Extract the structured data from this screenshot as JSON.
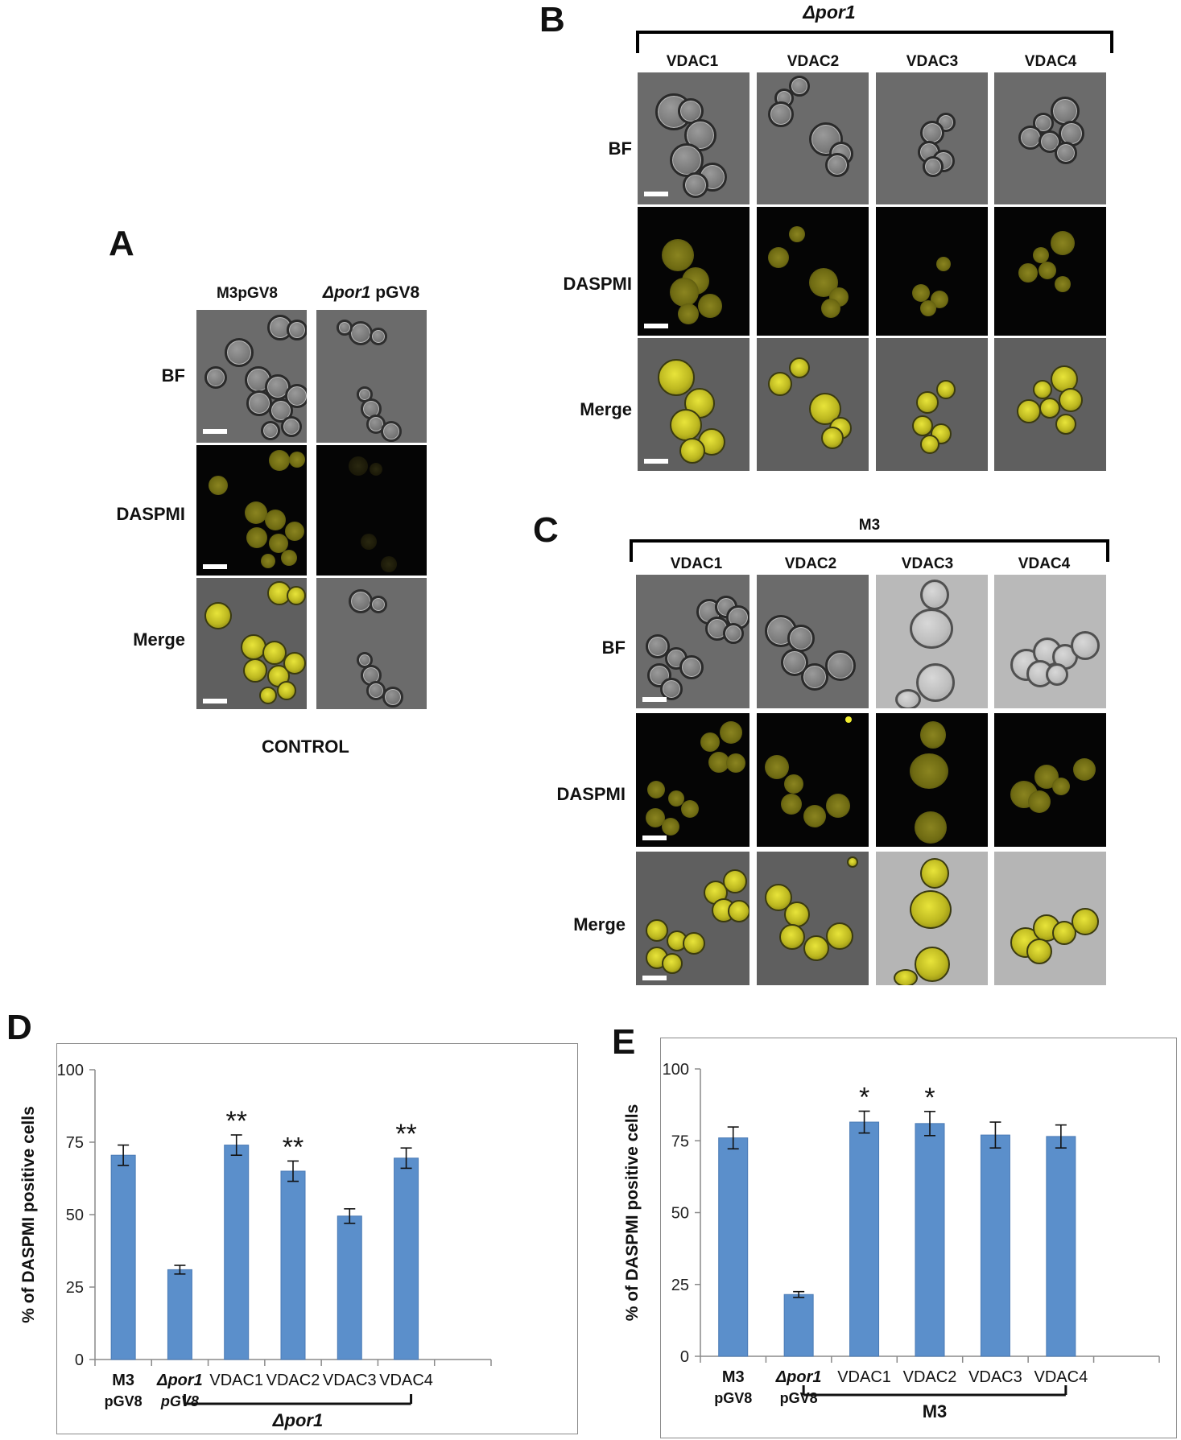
{
  "panels": {
    "A": {
      "letter": "A",
      "columns": [
        "M3pGV8",
        "pGV8"
      ],
      "col2_italic": "Δpor1",
      "rows": [
        "BF",
        "DASPMI",
        "Merge"
      ],
      "caption": "CONTROL"
    },
    "B": {
      "letter": "B",
      "header": "Δpor1",
      "columns": [
        "VDAC1",
        "VDAC2",
        "VDAC3",
        "VDAC4"
      ],
      "rows": [
        "BF",
        "DASPMI",
        "Merge"
      ]
    },
    "C": {
      "letter": "C",
      "header": "M3",
      "columns": [
        "VDAC1",
        "VDAC2",
        "VDAC3",
        "VDAC4"
      ],
      "rows": [
        "BF",
        "DASPMI",
        "Merge"
      ]
    },
    "D": {
      "letter": "D"
    },
    "E": {
      "letter": "E"
    }
  },
  "colors": {
    "bar": "#5b8fcb",
    "bar_stroke": "#4a7ab5",
    "axis": "#8a8a8a"
  },
  "chart_data": [
    {
      "id": "D",
      "type": "bar",
      "ylabel": "% of DASPMI positive cells",
      "ylim": [
        0,
        100
      ],
      "yticks": [
        0,
        25,
        50,
        75,
        100
      ],
      "categories": [
        {
          "line1": "M3",
          "line2": "pGV8",
          "style": "bold"
        },
        {
          "line1": "Δpor1",
          "line2": "pGV8",
          "style": "bolditalic"
        },
        {
          "line1": "VDAC1",
          "line2": "",
          "style": "normal"
        },
        {
          "line1": "VDAC2",
          "line2": "",
          "style": "normal"
        },
        {
          "line1": "VDAC3",
          "line2": "",
          "style": "normal"
        },
        {
          "line1": "VDAC4",
          "line2": "",
          "style": "normal"
        }
      ],
      "values": [
        70.5,
        31,
        74,
        65,
        49.5,
        69.5
      ],
      "errors": [
        3.5,
        1.5,
        3.5,
        3.5,
        2.5,
        3.5
      ],
      "significance": [
        "",
        "",
        "**",
        "**",
        "",
        "**"
      ],
      "group_label": "Δpor1",
      "group_span": [
        2,
        5
      ]
    },
    {
      "id": "E",
      "type": "bar",
      "ylabel": "% of DASPMI positive cells",
      "ylim": [
        0,
        100
      ],
      "yticks": [
        0,
        25,
        50,
        75,
        100
      ],
      "categories": [
        {
          "line1": "M3",
          "line2": "pGV8",
          "style": "bold"
        },
        {
          "line1": "Δpor1",
          "line2": "pGV8",
          "style": "bolditalic"
        },
        {
          "line1": "VDAC1",
          "line2": "",
          "style": "normal"
        },
        {
          "line1": "VDAC2",
          "line2": "",
          "style": "normal"
        },
        {
          "line1": "VDAC3",
          "line2": "",
          "style": "normal"
        },
        {
          "line1": "VDAC4",
          "line2": "",
          "style": "normal"
        }
      ],
      "values": [
        76,
        21.5,
        81.5,
        81,
        77,
        76.5
      ],
      "errors": [
        3.8,
        1,
        3.8,
        4.2,
        4.5,
        4
      ],
      "significance": [
        "",
        "",
        "*",
        "*",
        "",
        ""
      ],
      "group_label": "M3",
      "group_span": [
        2,
        5
      ]
    }
  ]
}
